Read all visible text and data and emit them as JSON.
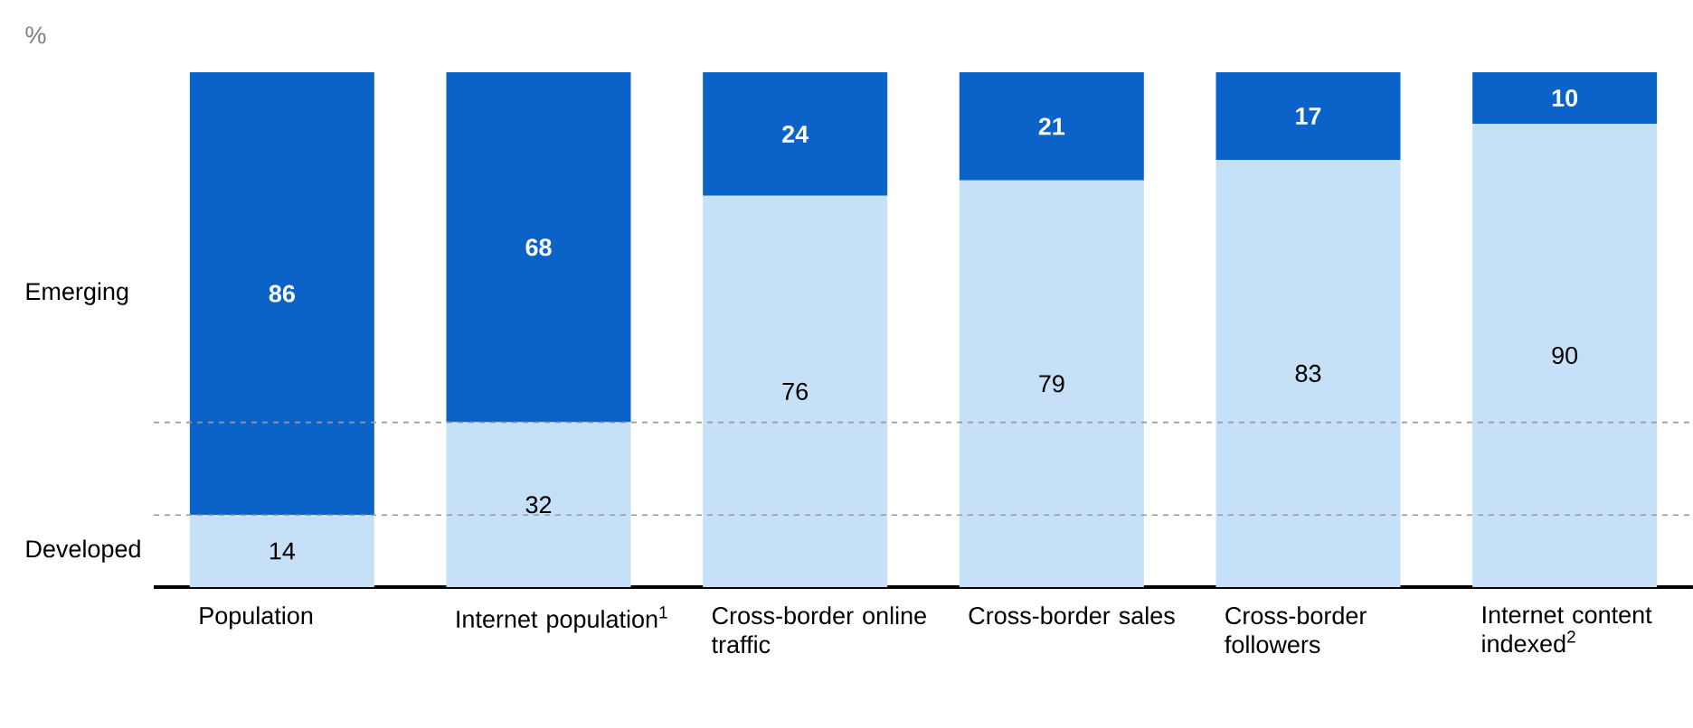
{
  "chart_data": {
    "type": "bar",
    "stacked": true,
    "ylabel": "%",
    "categories": [
      "Population",
      "Internet population$^{1}$",
      "Cross-border online traffic",
      "Cross-border sales",
      "Cross-border followers",
      "Internet content indexed$^{2}$"
    ],
    "series": [
      {
        "name": "Developed",
        "color": "#c6e0f8",
        "values": [
          14,
          32,
          76,
          79,
          83,
          90
        ]
      },
      {
        "name": "Emerging",
        "color": "#0b63c9",
        "values": [
          86,
          68,
          24,
          21,
          17,
          10
        ]
      }
    ],
    "ylim": [
      0,
      100
    ],
    "tick_labels": "x",
    "data_labels": true,
    "legend": "left",
    "ref_lines": [
      {
        "axis": "y",
        "value": 14,
        "color": "#999999",
        "line_style": "dashed"
      },
      {
        "axis": "y",
        "value": 32,
        "color": "#999999",
        "line_style": "dashed"
      }
    ]
  }
}
